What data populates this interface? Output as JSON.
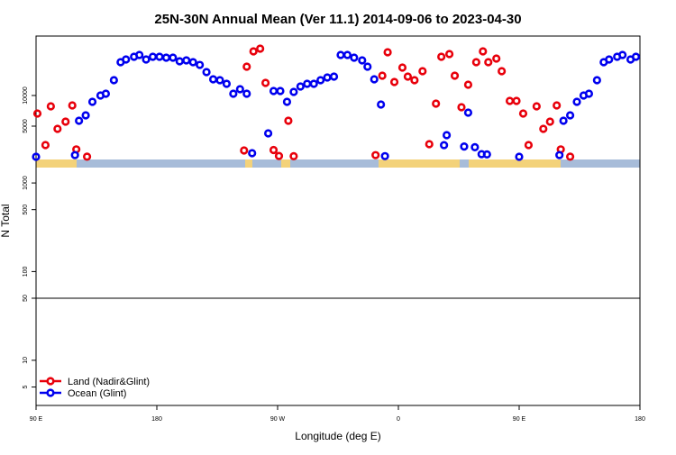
{
  "chart_data": {
    "type": "scatter",
    "title": "25N-30N Annual Mean (Ver 11.1)   2014-09-06 to 2023-04-30",
    "x_label": "Longitude (deg E)",
    "y_label": "N Total",
    "xlim": [
      90,
      540
    ],
    "xticks": [
      {
        "value": 90,
        "label": "90 E"
      },
      180,
      {
        "value": 270,
        "label": "90 W"
      },
      {
        "value": 360,
        "label": "0"
      },
      {
        "value": 450,
        "label": "90 E"
      },
      {
        "value": 540,
        "label": "180"
      }
    ],
    "panels": [
      {
        "ylim": [
          0,
          19700
        ],
        "yticks": [
          5000,
          10000
        ],
        "log": false
      },
      {
        "ylim": [
          50,
          1842
        ],
        "yticks": [
          100,
          500,
          1000
        ],
        "log": true
      },
      {
        "ylim": [
          3.1,
          50
        ],
        "yticks": [
          5,
          10,
          50
        ],
        "log": true
      }
    ],
    "legend": "bottom-left",
    "series": [
      {
        "name": "Land (Nadir&Glint)",
        "color": "#e8000b",
        "x": [
          91,
          97,
          101,
          106,
          112,
          117,
          120,
          128,
          245,
          247,
          252,
          257,
          261,
          267,
          271,
          278,
          282,
          343,
          348,
          352,
          357,
          363,
          367,
          372,
          378,
          383,
          388,
          392,
          398,
          402,
          407,
          412,
          418,
          423,
          427,
          433,
          437,
          443,
          448,
          453,
          457,
          463,
          468,
          473,
          478,
          481,
          488
        ],
        "values": [
          7060,
          1910,
          8230,
          4560,
          5730,
          8380,
          1207,
          18.5,
          1024,
          14700,
          17200,
          17640,
          12050,
          1100,
          129,
          5880,
          91,
          268,
          13230,
          17050,
          12200,
          14550,
          13080,
          12500,
          13970,
          2060,
          8670,
          16320,
          16760,
          13230,
          8090,
          11760,
          15440,
          17200,
          15440,
          16020,
          13970,
          9110,
          9110,
          7060,
          1910,
          8230,
          4560,
          5730,
          8380,
          1207,
          18.5
        ]
      },
      {
        "name": "Ocean (Glint)",
        "color": "#0000ee",
        "x": [
          90,
          119,
          122,
          127,
          132,
          138,
          142,
          148,
          153,
          157,
          163,
          167,
          172,
          177,
          182,
          187,
          192,
          197,
          202,
          207,
          212,
          217,
          222,
          227,
          232,
          237,
          242,
          247,
          251,
          263,
          267,
          272,
          277,
          282,
          287,
          292,
          297,
          302,
          307,
          312,
          317,
          322,
          327,
          333,
          337,
          342,
          347,
          350,
          394,
          396,
          409,
          412,
          417,
          422,
          426,
          450,
          480,
          483,
          488,
          493,
          498,
          502,
          508,
          513,
          517,
          523,
          527,
          533,
          537
        ],
        "values": [
          4.14,
          268,
          5880,
          6760,
          8970,
          10000,
          10290,
          12500,
          15440,
          15880,
          16320,
          16610,
          15880,
          16320,
          16320,
          16170,
          16170,
          15580,
          15730,
          15440,
          14990,
          13820,
          12640,
          12500,
          11910,
          10290,
          11030,
          10290,
          590,
          3820,
          10730,
          10730,
          8970,
          10580,
          11470,
          11910,
          11910,
          12500,
          12940,
          13080,
          16610,
          16610,
          16170,
          15730,
          14700,
          12640,
          8530,
          102,
          1900,
          3530,
          1677,
          7200,
          1563,
          419,
          390,
          4.2,
          268,
          5880,
          6760,
          8970,
          10000,
          10290,
          12500,
          15440,
          15880,
          16320,
          16610,
          15880,
          16320
        ]
      }
    ]
  }
}
